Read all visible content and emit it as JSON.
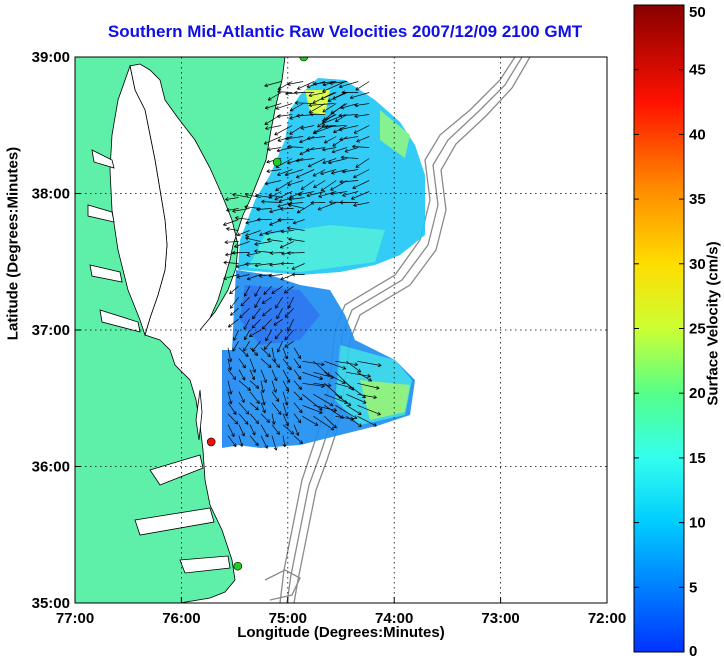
{
  "title": "Southern Mid-Atlantic Raw Velocities 2007/12/09 2100 GMT",
  "x_axis": {
    "label": "Longitude (Degrees:Minutes)",
    "ticks": [
      {
        "value": -77,
        "label": "77:00"
      },
      {
        "value": -76,
        "label": "76:00"
      },
      {
        "value": -75,
        "label": "75:00"
      },
      {
        "value": -74,
        "label": "74:00"
      },
      {
        "value": -73,
        "label": "73:00"
      },
      {
        "value": -72,
        "label": "72:00"
      }
    ],
    "range": [
      -77,
      -72
    ]
  },
  "y_axis": {
    "label": "Latitude (Degrees:Minutes)",
    "ticks": [
      {
        "value": 35,
        "label": "35:00"
      },
      {
        "value": 36,
        "label": "36:00"
      },
      {
        "value": 37,
        "label": "37:00"
      },
      {
        "value": 38,
        "label": "38:00"
      },
      {
        "value": 39,
        "label": "39:00"
      }
    ],
    "range": [
      35,
      39
    ]
  },
  "colorbar": {
    "label": "Surface Velocity (cm/s)",
    "min": 0,
    "max": 50,
    "ticks": [
      {
        "value": 0,
        "label": "0"
      },
      {
        "value": 5,
        "label": "5"
      },
      {
        "value": 10,
        "label": "10"
      },
      {
        "value": 15,
        "label": "15"
      },
      {
        "value": 20,
        "label": "20"
      },
      {
        "value": 25,
        "label": "25"
      },
      {
        "value": 30,
        "label": "30"
      },
      {
        "value": 35,
        "label": "35"
      },
      {
        "value": 40,
        "label": "40"
      },
      {
        "value": 45,
        "label": "45"
      },
      {
        "value": 50,
        "label": "50"
      }
    ]
  },
  "colors": {
    "land": "#5ef0a8",
    "water": "#ffffff",
    "coastline": "#000000",
    "bathymetry": "#8a8a8a",
    "title": "#1010e6",
    "vector": "#000000",
    "grid": "#000000"
  },
  "stations": [
    {
      "lon": -74.85,
      "lat": 39.0,
      "color": "#22cc22"
    },
    {
      "lon": -75.1,
      "lat": 38.23,
      "color": "#22cc22"
    },
    {
      "lon": -75.72,
      "lat": 36.18,
      "color": "#ee1111"
    },
    {
      "lon": -75.47,
      "lat": 35.27,
      "color": "#22cc22"
    }
  ],
  "chart_data": {
    "type": "vector-field-map",
    "grid": true,
    "regions": [
      {
        "lon": [
          -75.1,
          -74.2
        ],
        "lat": [
          37.9,
          38.85
        ],
        "speed_cm_s": 12,
        "direction_deg": 255
      },
      {
        "lon": [
          -74.6,
          -74.4
        ],
        "lat": [
          38.45,
          38.85
        ],
        "speed_cm_s": 21,
        "direction_deg": 250
      },
      {
        "lon": [
          -75.5,
          -74.8
        ],
        "lat": [
          37.4,
          38.0
        ],
        "speed_cm_s": 10,
        "direction_deg": 265
      },
      {
        "lon": [
          -75.5,
          -74.9
        ],
        "lat": [
          36.9,
          37.35
        ],
        "speed_cm_s": 7,
        "direction_deg": 225
      },
      {
        "lon": [
          -75.6,
          -74.9
        ],
        "lat": [
          36.2,
          36.9
        ],
        "speed_cm_s": 8,
        "direction_deg": 150
      },
      {
        "lon": [
          -74.9,
          -74.3
        ],
        "lat": [
          36.3,
          36.8
        ],
        "speed_cm_s": 17,
        "direction_deg": 115
      }
    ]
  }
}
